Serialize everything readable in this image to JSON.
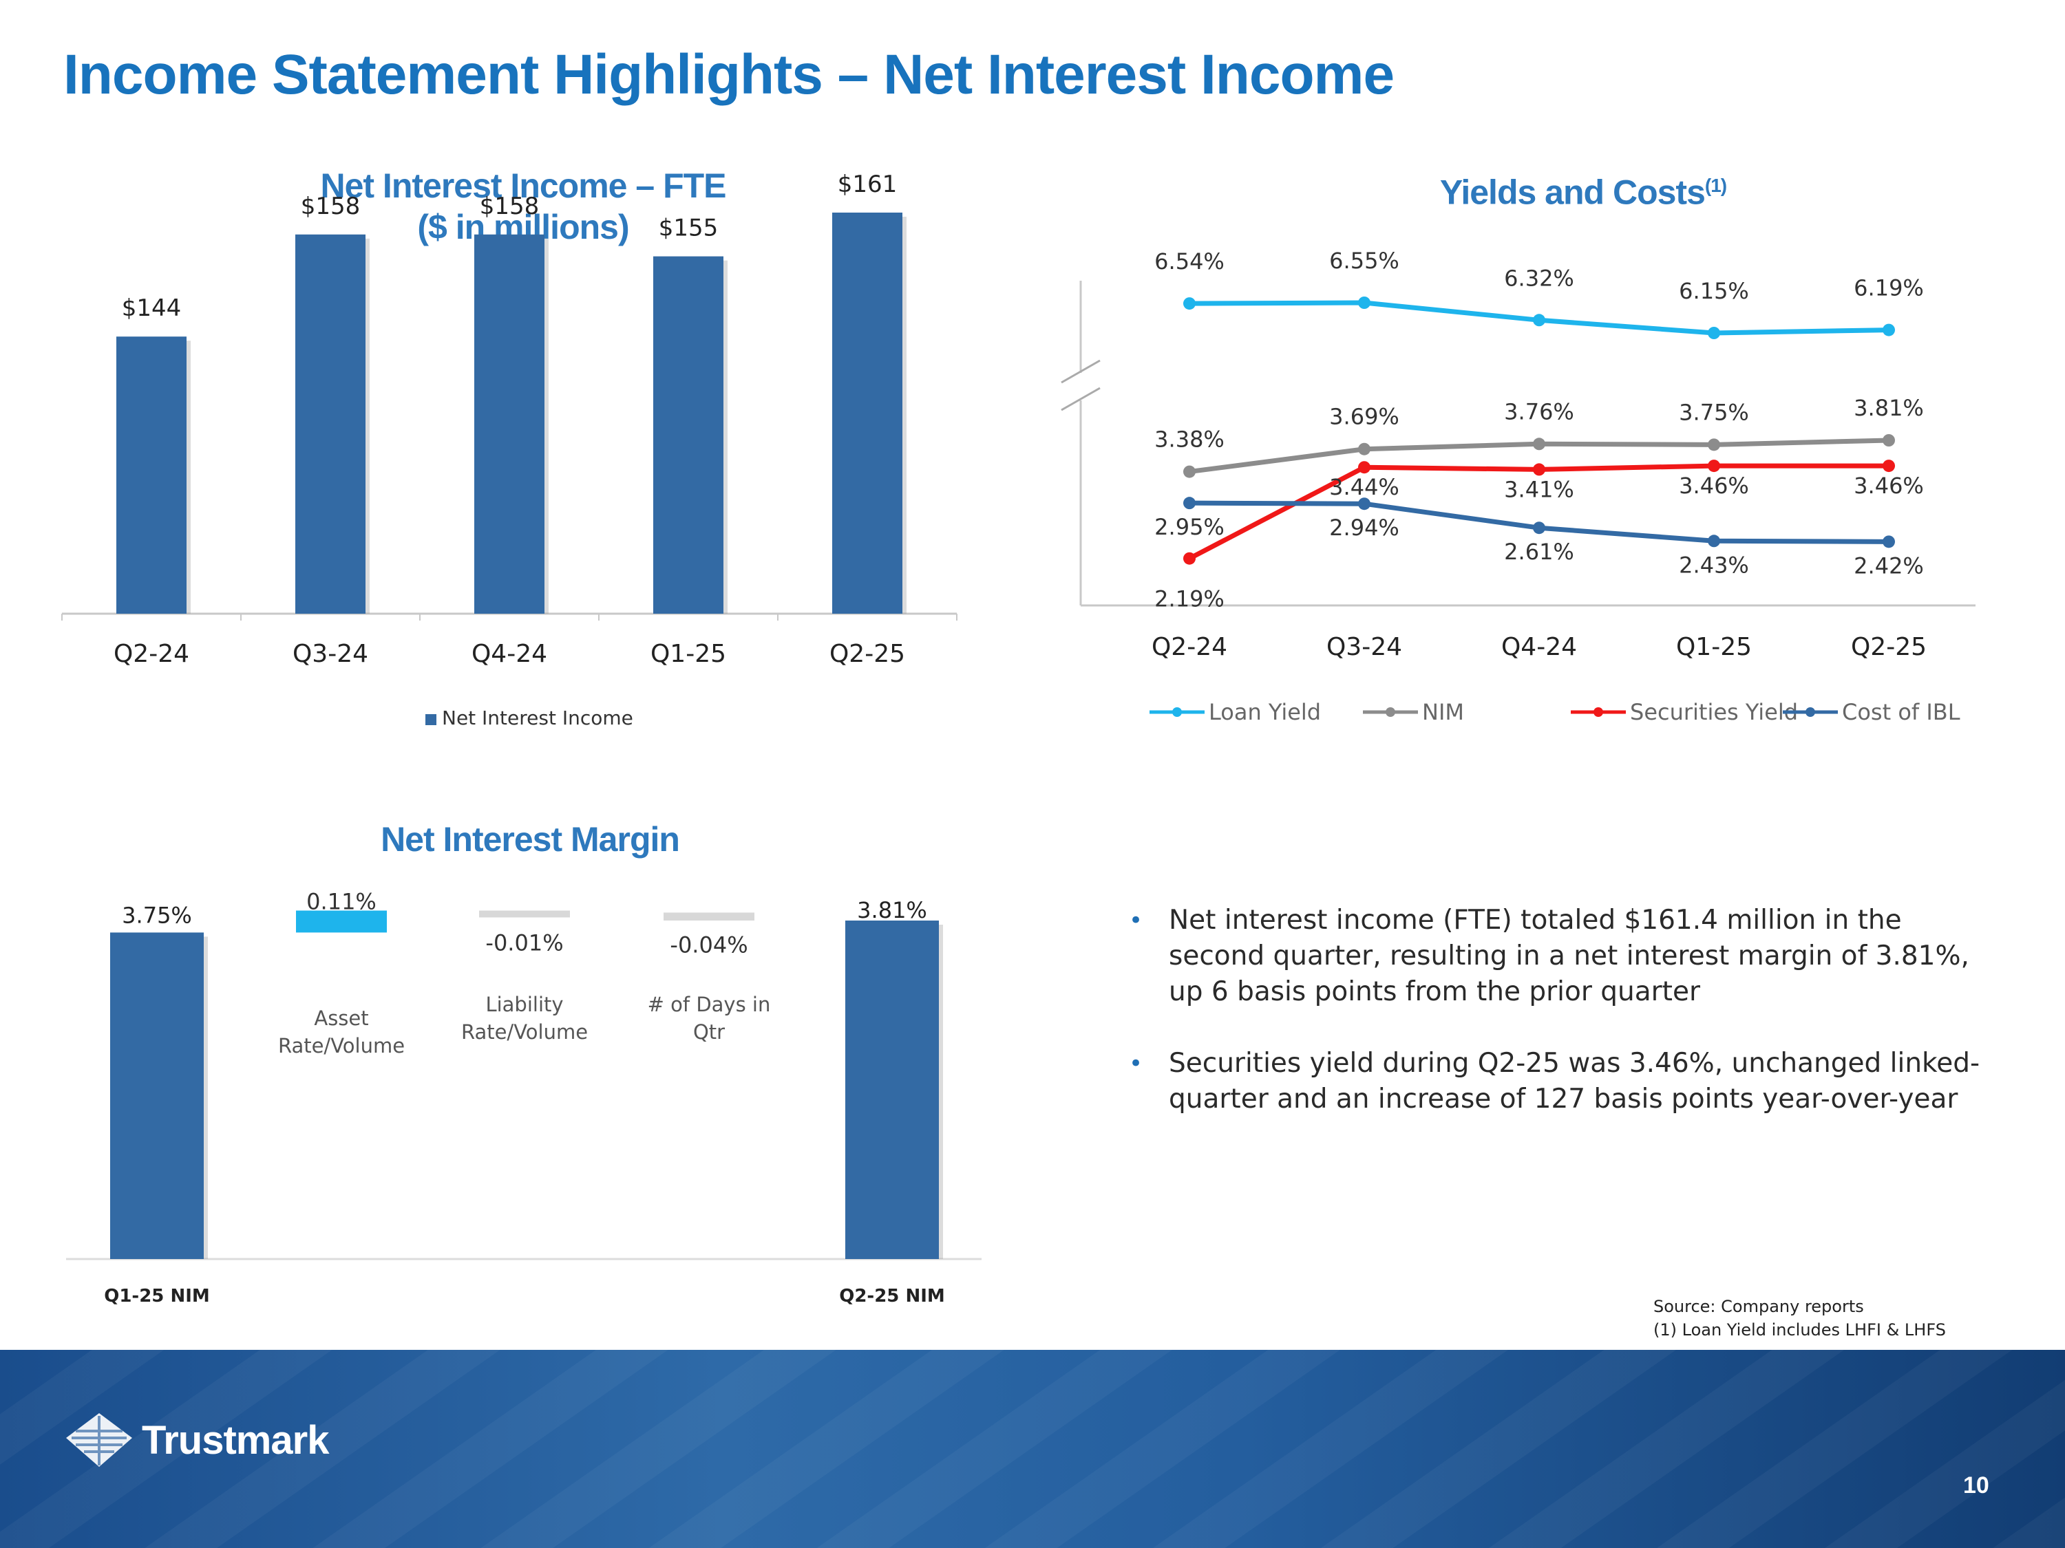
{
  "slide": {
    "title": "Income Statement Highlights – Net Interest Income",
    "page_number": "10",
    "logo_text": "Trustmark",
    "source_line1": "Source: Company reports",
    "source_line2": "(1) Loan Yield  includes LHFI & LHFS",
    "bullets": [
      "Net interest income (FTE) totaled $161.4 million in the second quarter, resulting in a net interest margin of 3.81%, up 6 basis points from the prior quarter",
      "Securities yield during Q2-25 was 3.46%, unchanged linked-quarter and an increase of 127 basis points year-over-year"
    ],
    "colors": {
      "title": "#1873bd",
      "bar": "#336aa4",
      "footer": "#1f5692"
    }
  },
  "chart_data": [
    {
      "type": "bar",
      "title_line1": "Net Interest Income – FTE",
      "title_line2": "($ in millions)",
      "categories": [
        "Q2-24",
        "Q3-24",
        "Q4-24",
        "Q1-25",
        "Q2-25"
      ],
      "series": [
        {
          "name": "Net Interest Income",
          "values": [
            144,
            158,
            158,
            155,
            161
          ],
          "color": "#336aa4"
        }
      ],
      "data_labels": [
        "$144",
        "$158",
        "$158",
        "$155",
        "$161"
      ],
      "legend": "bottom",
      "grid": false
    },
    {
      "type": "line",
      "title": "Yields and Costs",
      "title_superscript": "(1)",
      "categories": [
        "Q2-24",
        "Q3-24",
        "Q4-24",
        "Q1-25",
        "Q2-25"
      ],
      "axis_break": true,
      "series": [
        {
          "name": "Loan Yield",
          "values": [
            6.54,
            6.55,
            6.32,
            6.15,
            6.19
          ],
          "labels": [
            "6.54%",
            "6.55%",
            "6.32%",
            "6.15%",
            "6.19%"
          ],
          "color": "#1eb4ec"
        },
        {
          "name": "NIM",
          "values": [
            3.38,
            3.69,
            3.76,
            3.75,
            3.81
          ],
          "labels": [
            "3.38%",
            "3.69%",
            "3.76%",
            "3.75%",
            "3.81%"
          ],
          "color": "#8c8c8c"
        },
        {
          "name": "Securities Yield",
          "values": [
            2.19,
            3.44,
            3.41,
            3.46,
            3.46
          ],
          "labels": [
            "2.19%",
            "3.44%",
            "3.41%",
            "3.46%",
            "3.46%"
          ],
          "color": "#f01818"
        },
        {
          "name": "Cost of IBL",
          "values": [
            2.95,
            2.94,
            2.61,
            2.43,
            2.42
          ],
          "labels": [
            "2.95%",
            "2.94%",
            "2.61%",
            "2.43%",
            "2.42%"
          ],
          "color": "#336aa4"
        }
      ],
      "legend": "bottom",
      "grid": false
    },
    {
      "type": "bar",
      "subtype": "waterfall",
      "title": "Net Interest Margin",
      "start": {
        "label": "Q1-25 NIM",
        "value": 3.75,
        "data_label": "3.75%"
      },
      "steps": [
        {
          "label": "Asset Rate/Volume",
          "label_lines": [
            "Asset",
            "Rate/Volume"
          ],
          "value": 0.11,
          "data_label": "0.11%"
        },
        {
          "label": "Liability Rate/Volume",
          "label_lines": [
            "Liability",
            "Rate/Volume"
          ],
          "value": -0.01,
          "data_label": "-0.01%"
        },
        {
          "label": "# of Days in Qtr",
          "label_lines": [
            "# of Days in",
            "Qtr"
          ],
          "value": -0.04,
          "data_label": "-0.04%"
        }
      ],
      "end": {
        "label": "Q2-25 NIM",
        "value": 3.81,
        "data_label": "3.81%"
      },
      "colors": {
        "total": "#336aa4",
        "increase": "#1eb4ec",
        "decrease": "#d8d8d8"
      }
    }
  ]
}
